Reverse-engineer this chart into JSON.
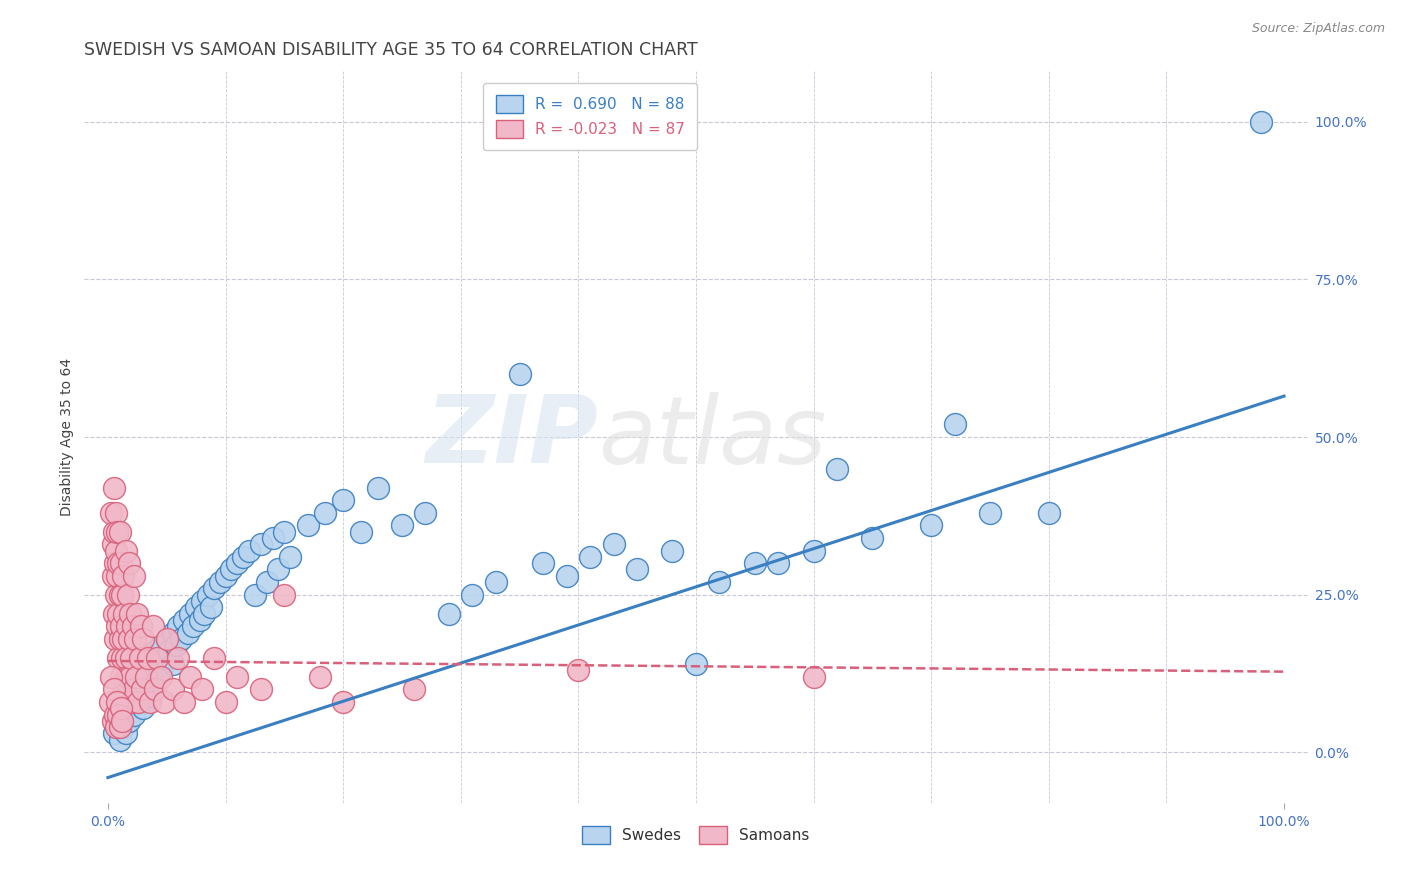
{
  "title": "SWEDISH VS SAMOAN DISABILITY AGE 35 TO 64 CORRELATION CHART",
  "source_text": "Source: ZipAtlas.com",
  "ylabel": "Disability Age 35 to 64",
  "xlim": [
    -0.02,
    1.02
  ],
  "ylim": [
    -0.08,
    1.08
  ],
  "x_tick_labels": [
    "0.0%",
    "100.0%"
  ],
  "x_tick_positions": [
    0.0,
    1.0
  ],
  "y_tick_labels": [
    "0.0%",
    "25.0%",
    "50.0%",
    "75.0%",
    "100.0%"
  ],
  "y_tick_positions": [
    0.0,
    0.25,
    0.5,
    0.75,
    1.0
  ],
  "watermark_zip": "ZIP",
  "watermark_atlas": "atlas",
  "swede_scatter": [
    [
      0.005,
      0.03
    ],
    [
      0.007,
      0.05
    ],
    [
      0.008,
      0.04
    ],
    [
      0.01,
      0.06
    ],
    [
      0.01,
      0.02
    ],
    [
      0.012,
      0.07
    ],
    [
      0.013,
      0.04
    ],
    [
      0.015,
      0.08
    ],
    [
      0.015,
      0.03
    ],
    [
      0.017,
      0.1
    ],
    [
      0.018,
      0.05
    ],
    [
      0.02,
      0.09
    ],
    [
      0.02,
      0.12
    ],
    [
      0.022,
      0.06
    ],
    [
      0.025,
      0.11
    ],
    [
      0.025,
      0.14
    ],
    [
      0.027,
      0.08
    ],
    [
      0.03,
      0.13
    ],
    [
      0.03,
      0.07
    ],
    [
      0.032,
      0.1
    ],
    [
      0.035,
      0.15
    ],
    [
      0.035,
      0.09
    ],
    [
      0.038,
      0.12
    ],
    [
      0.04,
      0.16
    ],
    [
      0.04,
      0.11
    ],
    [
      0.042,
      0.14
    ],
    [
      0.045,
      0.17
    ],
    [
      0.045,
      0.13
    ],
    [
      0.048,
      0.15
    ],
    [
      0.05,
      0.18
    ],
    [
      0.052,
      0.16
    ],
    [
      0.055,
      0.19
    ],
    [
      0.055,
      0.14
    ],
    [
      0.058,
      0.17
    ],
    [
      0.06,
      0.2
    ],
    [
      0.062,
      0.18
    ],
    [
      0.065,
      0.21
    ],
    [
      0.068,
      0.19
    ],
    [
      0.07,
      0.22
    ],
    [
      0.072,
      0.2
    ],
    [
      0.075,
      0.23
    ],
    [
      0.078,
      0.21
    ],
    [
      0.08,
      0.24
    ],
    [
      0.082,
      0.22
    ],
    [
      0.085,
      0.25
    ],
    [
      0.088,
      0.23
    ],
    [
      0.09,
      0.26
    ],
    [
      0.095,
      0.27
    ],
    [
      0.1,
      0.28
    ],
    [
      0.105,
      0.29
    ],
    [
      0.11,
      0.3
    ],
    [
      0.115,
      0.31
    ],
    [
      0.12,
      0.32
    ],
    [
      0.125,
      0.25
    ],
    [
      0.13,
      0.33
    ],
    [
      0.135,
      0.27
    ],
    [
      0.14,
      0.34
    ],
    [
      0.145,
      0.29
    ],
    [
      0.15,
      0.35
    ],
    [
      0.155,
      0.31
    ],
    [
      0.17,
      0.36
    ],
    [
      0.185,
      0.38
    ],
    [
      0.2,
      0.4
    ],
    [
      0.215,
      0.35
    ],
    [
      0.23,
      0.42
    ],
    [
      0.25,
      0.36
    ],
    [
      0.27,
      0.38
    ],
    [
      0.29,
      0.22
    ],
    [
      0.31,
      0.25
    ],
    [
      0.33,
      0.27
    ],
    [
      0.35,
      0.6
    ],
    [
      0.37,
      0.3
    ],
    [
      0.39,
      0.28
    ],
    [
      0.41,
      0.31
    ],
    [
      0.43,
      0.33
    ],
    [
      0.45,
      0.29
    ],
    [
      0.48,
      0.32
    ],
    [
      0.5,
      0.14
    ],
    [
      0.52,
      0.27
    ],
    [
      0.55,
      0.3
    ],
    [
      0.57,
      0.3
    ],
    [
      0.6,
      0.32
    ],
    [
      0.62,
      0.45
    ],
    [
      0.65,
      0.34
    ],
    [
      0.7,
      0.36
    ],
    [
      0.72,
      0.52
    ],
    [
      0.75,
      0.38
    ],
    [
      0.8,
      0.38
    ],
    [
      0.98,
      1.0
    ]
  ],
  "samoan_scatter": [
    [
      0.003,
      0.38
    ],
    [
      0.004,
      0.33
    ],
    [
      0.004,
      0.28
    ],
    [
      0.005,
      0.35
    ],
    [
      0.005,
      0.22
    ],
    [
      0.005,
      0.42
    ],
    [
      0.006,
      0.3
    ],
    [
      0.006,
      0.18
    ],
    [
      0.007,
      0.32
    ],
    [
      0.007,
      0.25
    ],
    [
      0.007,
      0.38
    ],
    [
      0.008,
      0.2
    ],
    [
      0.008,
      0.28
    ],
    [
      0.008,
      0.35
    ],
    [
      0.009,
      0.15
    ],
    [
      0.009,
      0.22
    ],
    [
      0.009,
      0.3
    ],
    [
      0.01,
      0.18
    ],
    [
      0.01,
      0.25
    ],
    [
      0.01,
      0.35
    ],
    [
      0.011,
      0.12
    ],
    [
      0.011,
      0.2
    ],
    [
      0.011,
      0.3
    ],
    [
      0.012,
      0.15
    ],
    [
      0.012,
      0.25
    ],
    [
      0.013,
      0.18
    ],
    [
      0.013,
      0.28
    ],
    [
      0.014,
      0.1
    ],
    [
      0.014,
      0.22
    ],
    [
      0.015,
      0.32
    ],
    [
      0.015,
      0.15
    ],
    [
      0.016,
      0.2
    ],
    [
      0.016,
      0.12
    ],
    [
      0.017,
      0.25
    ],
    [
      0.017,
      0.08
    ],
    [
      0.018,
      0.18
    ],
    [
      0.018,
      0.3
    ],
    [
      0.019,
      0.12
    ],
    [
      0.019,
      0.22
    ],
    [
      0.02,
      0.15
    ],
    [
      0.02,
      0.08
    ],
    [
      0.021,
      0.2
    ],
    [
      0.022,
      0.1
    ],
    [
      0.022,
      0.28
    ],
    [
      0.023,
      0.18
    ],
    [
      0.024,
      0.12
    ],
    [
      0.025,
      0.22
    ],
    [
      0.026,
      0.08
    ],
    [
      0.027,
      0.15
    ],
    [
      0.028,
      0.2
    ],
    [
      0.029,
      0.1
    ],
    [
      0.03,
      0.18
    ],
    [
      0.032,
      0.12
    ],
    [
      0.034,
      0.15
    ],
    [
      0.036,
      0.08
    ],
    [
      0.038,
      0.2
    ],
    [
      0.04,
      0.1
    ],
    [
      0.042,
      0.15
    ],
    [
      0.045,
      0.12
    ],
    [
      0.048,
      0.08
    ],
    [
      0.05,
      0.18
    ],
    [
      0.055,
      0.1
    ],
    [
      0.06,
      0.15
    ],
    [
      0.065,
      0.08
    ],
    [
      0.07,
      0.12
    ],
    [
      0.08,
      0.1
    ],
    [
      0.09,
      0.15
    ],
    [
      0.1,
      0.08
    ],
    [
      0.11,
      0.12
    ],
    [
      0.13,
      0.1
    ],
    [
      0.15,
      0.25
    ],
    [
      0.18,
      0.12
    ],
    [
      0.2,
      0.08
    ],
    [
      0.26,
      0.1
    ],
    [
      0.4,
      0.13
    ],
    [
      0.6,
      0.12
    ],
    [
      0.002,
      0.08
    ],
    [
      0.003,
      0.12
    ],
    [
      0.004,
      0.05
    ],
    [
      0.005,
      0.1
    ],
    [
      0.006,
      0.06
    ],
    [
      0.007,
      0.04
    ],
    [
      0.008,
      0.08
    ],
    [
      0.009,
      0.06
    ],
    [
      0.01,
      0.04
    ],
    [
      0.011,
      0.07
    ],
    [
      0.012,
      0.05
    ]
  ],
  "swede_line": {
    "x": [
      0.0,
      1.0
    ],
    "y": [
      -0.04,
      0.565
    ]
  },
  "samoan_line": {
    "x": [
      0.0,
      1.0
    ],
    "y": [
      0.145,
      0.128
    ]
  },
  "swede_color": "#3a7fc1",
  "samoan_color": "#d9607a",
  "swede_fill": "#b8d4ee",
  "samoan_fill": "#f0b8c8",
  "background_color": "#ffffff",
  "grid_color": "#c8c8d8",
  "title_fontsize": 12.5,
  "axis_label_fontsize": 10,
  "tick_fontsize": 10,
  "legend_fontsize": 11
}
